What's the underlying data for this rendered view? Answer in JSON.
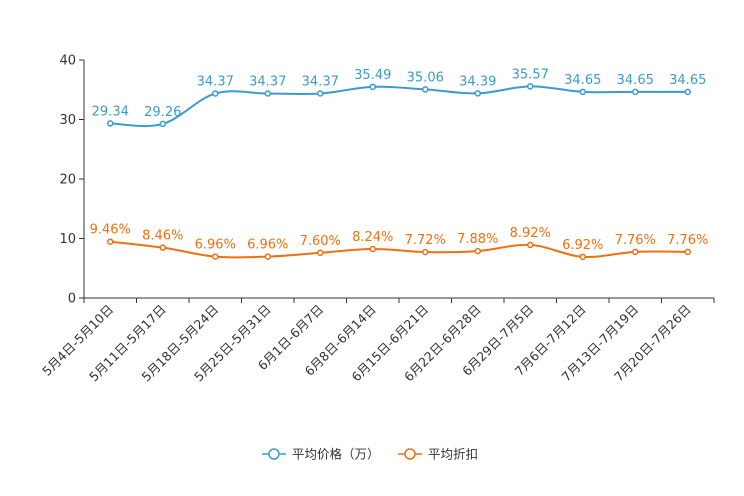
{
  "chart_data": {
    "type": "line",
    "title": "",
    "xlabel": "",
    "ylabel": "",
    "ylim": [
      0,
      40
    ],
    "yticks": [
      0,
      10,
      20,
      30,
      40
    ],
    "grid": false,
    "legend_position": "bottom-center",
    "categories": [
      "5月4日-5月10日",
      "5月11日-5月17日",
      "5月18日-5月24日",
      "5月25日-5月31日",
      "6月1日-6月7日",
      "6月8日-6月14日",
      "6月15日-6月21日",
      "6月22日-6月28日",
      "6月29日-7月5日",
      "7月6日-7月12日",
      "7月13日-7月19日",
      "7月20日-7月26日"
    ],
    "series": [
      {
        "name": "平均价格（万）",
        "color": "#3a9bd0",
        "values": [
          29.34,
          29.26,
          34.37,
          34.37,
          34.37,
          35.49,
          35.06,
          34.39,
          35.57,
          34.65,
          34.65,
          34.65
        ],
        "labels": [
          "29.34",
          "29.26",
          "34.37",
          "34.37",
          "34.37",
          "35.49",
          "35.06",
          "34.39",
          "35.57",
          "34.65",
          "34.65",
          "34.65"
        ]
      },
      {
        "name": "平均折扣",
        "color": "#f07010",
        "values": [
          9.46,
          8.46,
          6.96,
          6.96,
          7.6,
          8.24,
          7.72,
          7.88,
          8.92,
          6.92,
          7.76,
          7.76
        ],
        "labels": [
          "9.46%",
          "8.46%",
          "6.96%",
          "6.96%",
          "7.60%",
          "8.24%",
          "7.72%",
          "7.88%",
          "8.92%",
          "6.92%",
          "7.76%",
          "7.76%"
        ]
      }
    ]
  }
}
